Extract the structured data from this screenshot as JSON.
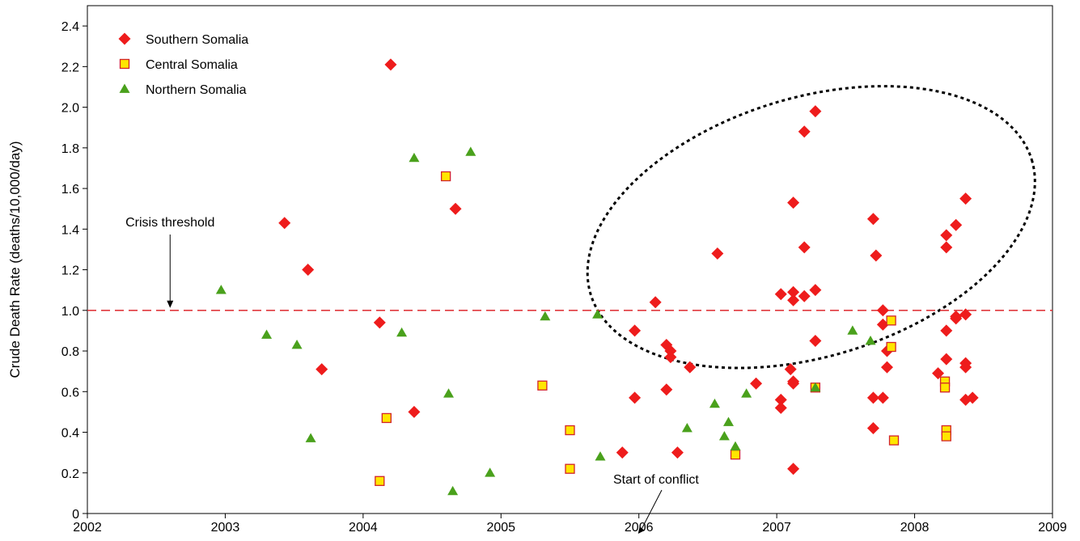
{
  "chart_data": {
    "type": "scatter",
    "title": "",
    "xlabel": "",
    "ylabel": "Crude Death Rate (deaths/10,000/day)",
    "xlim": [
      2002,
      2009
    ],
    "ylim": [
      0,
      2.5
    ],
    "x_ticks": [
      2002,
      2003,
      2004,
      2005,
      2006,
      2007,
      2008,
      2009
    ],
    "y_ticks": [
      0,
      0.2,
      0.4,
      0.6,
      0.8,
      1.0,
      1.2,
      1.4,
      1.6,
      1.8,
      2.0,
      2.2,
      2.4
    ],
    "y_tick_labels": [
      "0",
      "0.2",
      "0.4",
      "0.6",
      "0.8",
      "1.0",
      "1.2",
      "1.4",
      "1.6",
      "1.8",
      "2.0",
      "2.2",
      "2.4"
    ],
    "grid": false,
    "legend_position": "top-left",
    "threshold": {
      "value": 1.0,
      "label": "Crisis threshold",
      "label_x": 2002.6,
      "color": "#e0393e"
    },
    "annotation": {
      "label": "Start of conflict",
      "x": 2006.0
    },
    "highlight_ellipse": {
      "center_x": 2007.25,
      "center_y": 1.41,
      "note": "dotted ellipse enclosing the 2006-2008 cluster of Southern Somalia points"
    },
    "series": [
      {
        "name": "Southern Somalia",
        "marker": "diamond",
        "color": "#ee1c1c",
        "points": [
          [
            2003.43,
            1.43
          ],
          [
            2003.6,
            1.2
          ],
          [
            2003.7,
            0.71
          ],
          [
            2004.12,
            0.94
          ],
          [
            2004.2,
            2.21
          ],
          [
            2004.37,
            0.5
          ],
          [
            2004.67,
            1.5
          ],
          [
            2005.88,
            0.3
          ],
          [
            2005.97,
            0.9
          ],
          [
            2005.97,
            0.57
          ],
          [
            2006.12,
            1.04
          ],
          [
            2006.2,
            0.83
          ],
          [
            2006.2,
            0.61
          ],
          [
            2006.23,
            0.8
          ],
          [
            2006.23,
            0.77
          ],
          [
            2006.28,
            0.3
          ],
          [
            2006.37,
            0.72
          ],
          [
            2006.57,
            1.28
          ],
          [
            2006.85,
            0.64
          ],
          [
            2007.03,
            1.08
          ],
          [
            2007.03,
            0.56
          ],
          [
            2007.03,
            0.52
          ],
          [
            2007.1,
            0.71
          ],
          [
            2007.12,
            1.53
          ],
          [
            2007.12,
            1.09
          ],
          [
            2007.12,
            1.05
          ],
          [
            2007.12,
            0.65
          ],
          [
            2007.12,
            0.64
          ],
          [
            2007.12,
            0.22
          ],
          [
            2007.2,
            1.88
          ],
          [
            2007.2,
            1.31
          ],
          [
            2007.2,
            1.07
          ],
          [
            2007.28,
            1.98
          ],
          [
            2007.28,
            1.1
          ],
          [
            2007.28,
            0.85
          ],
          [
            2007.7,
            1.45
          ],
          [
            2007.7,
            0.57
          ],
          [
            2007.7,
            0.42
          ],
          [
            2007.72,
            1.27
          ],
          [
            2007.77,
            1.0
          ],
          [
            2007.77,
            0.93
          ],
          [
            2007.77,
            0.57
          ],
          [
            2007.8,
            0.8
          ],
          [
            2007.8,
            0.72
          ],
          [
            2008.17,
            0.69
          ],
          [
            2008.23,
            1.37
          ],
          [
            2008.23,
            1.31
          ],
          [
            2008.23,
            0.9
          ],
          [
            2008.23,
            0.76
          ],
          [
            2008.3,
            1.42
          ],
          [
            2008.3,
            0.97
          ],
          [
            2008.3,
            0.96
          ],
          [
            2008.37,
            1.55
          ],
          [
            2008.37,
            0.98
          ],
          [
            2008.37,
            0.74
          ],
          [
            2008.37,
            0.72
          ],
          [
            2008.37,
            0.56
          ],
          [
            2008.42,
            0.57
          ]
        ]
      },
      {
        "name": "Central Somalia",
        "marker": "square",
        "color": "#ffe600",
        "stroke": "#d2232a",
        "points": [
          [
            2004.12,
            0.16
          ],
          [
            2004.17,
            0.47
          ],
          [
            2004.6,
            1.66
          ],
          [
            2005.3,
            0.63
          ],
          [
            2005.5,
            0.41
          ],
          [
            2005.5,
            0.22
          ],
          [
            2006.7,
            0.29
          ],
          [
            2007.28,
            0.62
          ],
          [
            2007.83,
            0.95
          ],
          [
            2007.83,
            0.82
          ],
          [
            2007.85,
            0.36
          ],
          [
            2008.22,
            0.65
          ],
          [
            2008.22,
            0.62
          ],
          [
            2008.23,
            0.41
          ],
          [
            2008.23,
            0.38
          ]
        ]
      },
      {
        "name": "Northern Somalia",
        "marker": "triangle",
        "color": "#4aa11c",
        "points": [
          [
            2002.97,
            1.1
          ],
          [
            2003.3,
            0.88
          ],
          [
            2003.52,
            0.83
          ],
          [
            2003.62,
            0.37
          ],
          [
            2004.28,
            0.89
          ],
          [
            2004.37,
            1.75
          ],
          [
            2004.62,
            0.59
          ],
          [
            2004.65,
            0.11
          ],
          [
            2004.78,
            1.78
          ],
          [
            2004.92,
            0.2
          ],
          [
            2005.32,
            0.97
          ],
          [
            2005.7,
            0.98
          ],
          [
            2005.72,
            0.28
          ],
          [
            2006.35,
            0.42
          ],
          [
            2006.55,
            0.54
          ],
          [
            2006.62,
            0.38
          ],
          [
            2006.65,
            0.45
          ],
          [
            2006.7,
            0.33
          ],
          [
            2006.78,
            0.59
          ],
          [
            2007.28,
            0.62
          ],
          [
            2007.55,
            0.9
          ],
          [
            2007.68,
            0.85
          ]
        ]
      }
    ]
  }
}
